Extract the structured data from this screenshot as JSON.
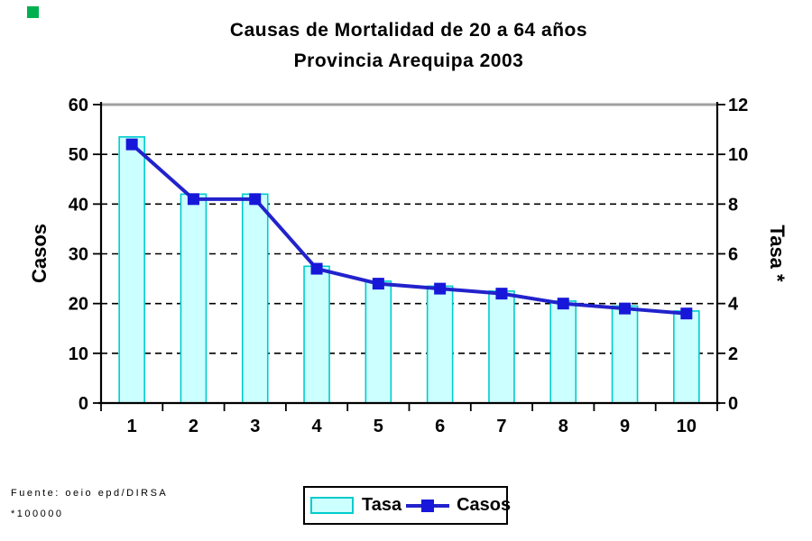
{
  "page": {
    "background": "#FFFFFF"
  },
  "decorations": {
    "corner_square_color": "#00B050"
  },
  "title": "Causas de Mortalidad de 20 a 64 años",
  "subtitle": "Provincia Arequipa 2003",
  "footer": {
    "source": "Fuente: oeio epd/DIRSA",
    "note": "*100000"
  },
  "colors": {
    "bar_fill": "#CCFFFF",
    "bar_border": "#00CCCC",
    "line": "#2222CC",
    "marker": "#1717D9",
    "grid": "#000000",
    "axis": "#000000",
    "plot_top_border": "#A0A0A0",
    "text": "#000000"
  },
  "chart_data": {
    "type": "bar",
    "subtype": "combo bar+line, dual y-axis",
    "title": "Causas de Mortalidad de 20 a 64 años",
    "subtitle": "Provincia Arequipa 2003",
    "categories": [
      "1",
      "2",
      "3",
      "4",
      "5",
      "6",
      "7",
      "8",
      "9",
      "10"
    ],
    "series": [
      {
        "name": "Tasa",
        "type": "bar",
        "axis": "right",
        "values": [
          10.7,
          8.4,
          8.4,
          5.5,
          4.9,
          4.7,
          4.5,
          4.1,
          3.9,
          3.7
        ]
      },
      {
        "name": "Casos",
        "type": "line",
        "axis": "left",
        "marker": "square",
        "values": [
          52,
          41,
          41,
          27,
          24,
          23,
          22,
          20,
          19,
          18
        ]
      }
    ],
    "left_axis": {
      "label": "Casos",
      "min": 0,
      "max": 60,
      "ticks": [
        0,
        10,
        20,
        30,
        40,
        50,
        60
      ]
    },
    "right_axis": {
      "label": "Tasa *",
      "min": 0,
      "max": 12,
      "ticks": [
        0,
        2,
        4,
        6,
        8,
        10,
        12
      ]
    },
    "xlabel": "",
    "grid": "horizontal dashed",
    "legend_position": "bottom-center",
    "legend_entries": [
      "Tasa",
      "Casos"
    ]
  }
}
